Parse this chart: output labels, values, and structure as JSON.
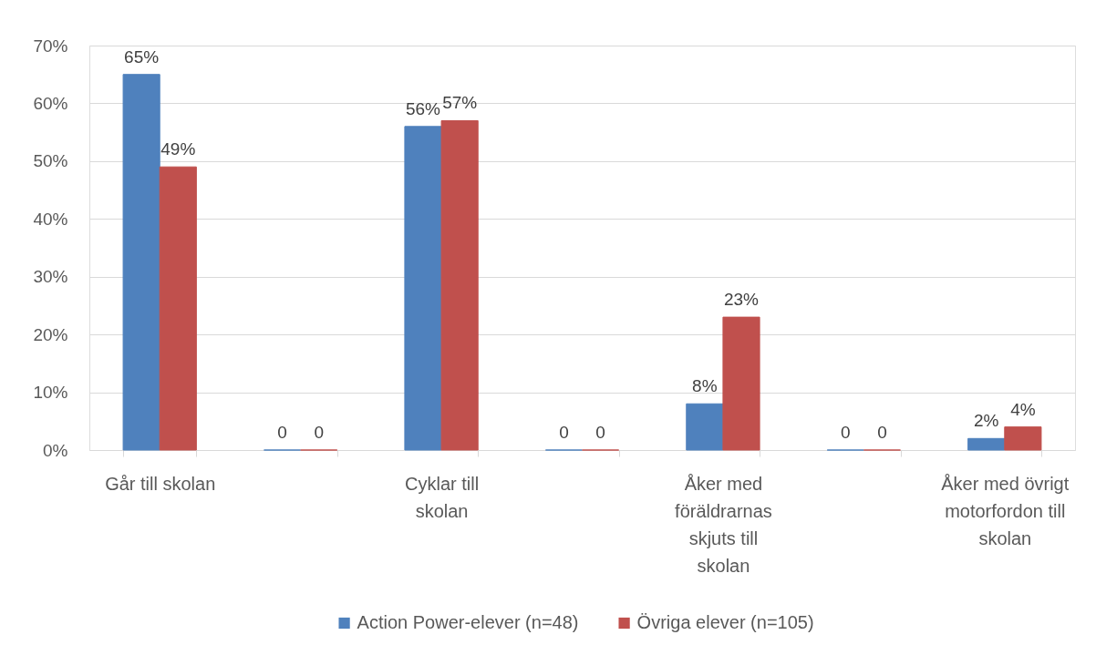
{
  "chart_data": {
    "type": "bar",
    "categories": [
      "Går till skolan",
      null,
      "Cyklar till skolan",
      null,
      "Åker med föräldrarnas skjuts till skolan",
      null,
      "Åker med övrigt motorfordon till skolan"
    ],
    "series": [
      {
        "name": "Action Power-elever (n=48)",
        "color": "#4f81bd",
        "values": [
          65,
          0,
          56,
          0,
          8,
          0,
          2
        ],
        "value_labels": [
          "65%",
          "0",
          "56%",
          "0",
          "8%",
          "0",
          "2%"
        ]
      },
      {
        "name": "Övriga elever (n=105)",
        "color": "#c0504d",
        "values": [
          49,
          0,
          57,
          0,
          23,
          0,
          4
        ],
        "value_labels": [
          "49%",
          "0",
          "57%",
          "0",
          "23%",
          "0",
          "4%"
        ]
      }
    ],
    "ylim": [
      0,
      70
    ],
    "yticks": [
      {
        "value": 0,
        "label": "0%"
      },
      {
        "value": 10,
        "label": "10%"
      },
      {
        "value": 20,
        "label": "20%"
      },
      {
        "value": 30,
        "label": "30%"
      },
      {
        "value": 40,
        "label": "40%"
      },
      {
        "value": 50,
        "label": "50%"
      },
      {
        "value": 60,
        "label": "60%"
      },
      {
        "value": 70,
        "label": "70%"
      }
    ],
    "grid": "y",
    "legend": "bottom"
  }
}
